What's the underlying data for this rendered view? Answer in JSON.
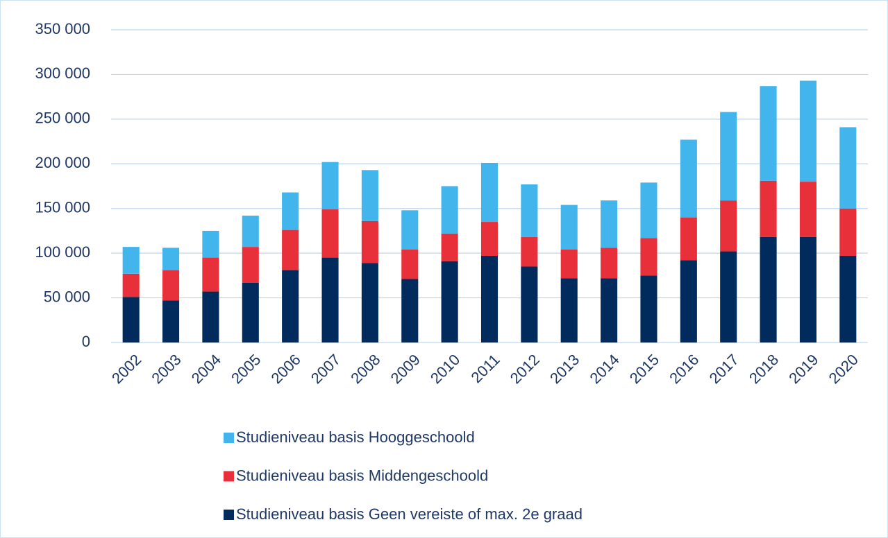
{
  "chart_data": {
    "type": "stacked_bar",
    "categories": [
      "2002",
      "2003",
      "2004",
      "2005",
      "2006",
      "2007",
      "2008",
      "2009",
      "2010",
      "2011",
      "2012",
      "2013",
      "2014",
      "2015",
      "2016",
      "2017",
      "2018",
      "2019",
      "2020"
    ],
    "series": [
      {
        "name": "Studieniveau basis Geen vereiste of max. 2e graad",
        "color": "#002b5c",
        "values": [
          51000,
          47000,
          57000,
          67000,
          81000,
          95000,
          89000,
          71000,
          91000,
          97000,
          85000,
          72000,
          72000,
          75000,
          92000,
          102000,
          118000,
          118000,
          97000
        ]
      },
      {
        "name": "Studieniveau basis Middengeschoold",
        "color": "#e8303b",
        "values": [
          26000,
          34000,
          38000,
          40000,
          45000,
          54000,
          47000,
          33000,
          31000,
          38000,
          33000,
          32000,
          34000,
          42000,
          48000,
          57000,
          63000,
          62000,
          53000
        ]
      },
      {
        "name": "Studieniveau basis Hooggeschoold",
        "color": "#42b6ec",
        "values": [
          30000,
          25000,
          30000,
          35000,
          42000,
          53000,
          57000,
          44000,
          53000,
          66000,
          59000,
          50000,
          53000,
          62000,
          87000,
          99000,
          106000,
          113000,
          91000
        ]
      }
    ],
    "ylim": [
      0,
      350000
    ],
    "yticks": [
      0,
      {
        "value": 50000,
        "label": "50 000"
      },
      {
        "value": 100000,
        "label": "100 000"
      },
      {
        "value": 150000,
        "label": "150 000"
      },
      {
        "value": 200000,
        "label": "200 000"
      },
      {
        "value": 250000,
        "label": "250 000"
      },
      {
        "value": 300000,
        "label": "300 000"
      },
      {
        "value": 350000,
        "label": "350 000"
      }
    ],
    "grid": true
  }
}
